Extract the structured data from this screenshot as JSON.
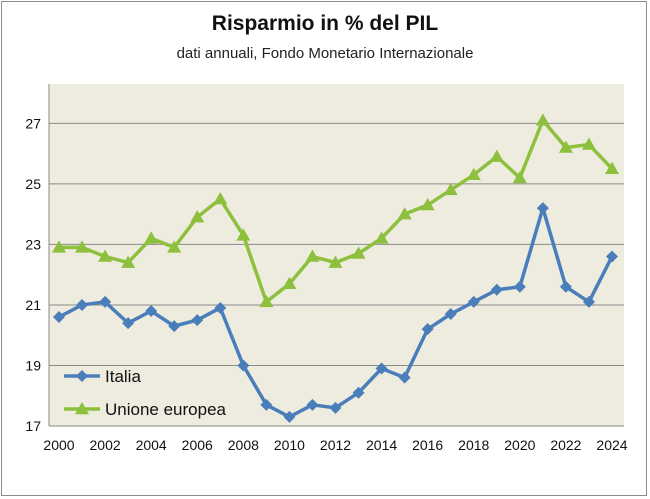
{
  "chart_data": {
    "type": "line",
    "title": "Risparmio in % del PIL",
    "subtitle": "dati annuali, Fondo Monetario Internazionale",
    "x": [
      2000,
      2001,
      2002,
      2003,
      2004,
      2005,
      2006,
      2007,
      2008,
      2009,
      2010,
      2011,
      2012,
      2013,
      2014,
      2015,
      2016,
      2017,
      2018,
      2019,
      2020,
      2021,
      2022,
      2023,
      2024
    ],
    "series": [
      {
        "name": "Italia",
        "color": "#4a7ebb",
        "marker": "diamond",
        "values": [
          20.6,
          21.0,
          21.1,
          20.4,
          20.8,
          20.3,
          20.5,
          20.9,
          19.0,
          17.7,
          17.3,
          17.7,
          17.6,
          18.1,
          18.9,
          18.6,
          20.2,
          20.7,
          21.1,
          21.5,
          21.6,
          24.2,
          21.6,
          21.1,
          22.6
        ]
      },
      {
        "name": "Unione europea",
        "color": "#8dc03c",
        "marker": "triangle",
        "values": [
          22.9,
          22.9,
          22.6,
          22.4,
          23.2,
          22.9,
          23.9,
          24.5,
          23.3,
          21.1,
          21.7,
          22.6,
          22.4,
          22.7,
          23.2,
          24.0,
          24.3,
          24.8,
          25.3,
          25.9,
          25.2,
          27.1,
          26.2,
          26.3,
          25.5
        ]
      }
    ],
    "ylim": [
      17,
      28.3
    ],
    "yticks": [
      17,
      19,
      21,
      23,
      25,
      27
    ],
    "xticks": [
      2000,
      2002,
      2004,
      2006,
      2008,
      2010,
      2012,
      2014,
      2016,
      2018,
      2020,
      2022,
      2024
    ],
    "grid": true,
    "plot_background": "#eeebdf",
    "legend": "bottom-left"
  }
}
